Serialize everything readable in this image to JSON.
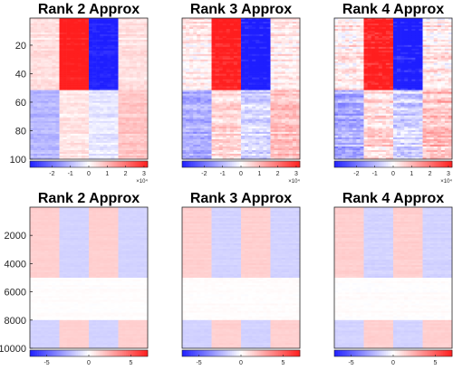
{
  "chart_data": [
    {
      "type": "heatmap",
      "title": "Rank 2 Approx",
      "ylim": [
        1,
        100
      ],
      "yticks": [
        20,
        40,
        60,
        80,
        100
      ],
      "colorbar": {
        "ticks": [
          -2,
          -1,
          0,
          1,
          2,
          3
        ],
        "min": -3.2,
        "max": 3.2,
        "multiplier": "×10⁴"
      },
      "row_groups": [
        {
          "rows": [
            1,
            51
          ],
          "column_values": [
            0.35,
            2.8,
            -2.8,
            0.35
          ]
        },
        {
          "rows": [
            52,
            100
          ],
          "column_values": [
            -0.9,
            0.3,
            -0.3,
            0.7
          ]
        }
      ],
      "noise": 0.18
    },
    {
      "type": "heatmap",
      "title": "Rank 3 Approx",
      "ylim": [
        1,
        100
      ],
      "yticks": [],
      "colorbar": {
        "ticks": [
          -2,
          -1,
          0,
          1,
          2,
          3
        ],
        "min": -3.2,
        "max": 3.2,
        "multiplier": "×10⁴"
      },
      "row_groups": [
        {
          "rows": [
            1,
            51
          ],
          "column_values": [
            0.3,
            2.9,
            -2.9,
            0.3
          ]
        },
        {
          "rows": [
            52,
            100
          ],
          "column_values": [
            -1.0,
            0.5,
            -0.5,
            0.8
          ]
        }
      ],
      "noise": 0.35
    },
    {
      "type": "heatmap",
      "title": "Rank 4 Approx",
      "ylim": [
        1,
        100
      ],
      "yticks": [],
      "colorbar": {
        "ticks": [
          -2,
          -1,
          0,
          1,
          2,
          3
        ],
        "min": -3.2,
        "max": 3.2,
        "multiplier": "×10⁴"
      },
      "row_groups": [
        {
          "rows": [
            1,
            51
          ],
          "column_values": [
            0.3,
            2.9,
            -2.9,
            0.3
          ]
        },
        {
          "rows": [
            52,
            100
          ],
          "column_values": [
            -1.0,
            0.5,
            -0.5,
            0.8
          ]
        }
      ],
      "noise": 0.45
    },
    {
      "type": "heatmap",
      "title": "Rank 2 Approx",
      "ylim": [
        1,
        10000
      ],
      "yticks": [
        2000,
        4000,
        6000,
        8000,
        10000
      ],
      "colorbar": {
        "ticks": [
          -5,
          0,
          5
        ],
        "min": -7,
        "max": 7
      },
      "row_groups": [
        {
          "rows": [
            1,
            5000
          ],
          "column_values": [
            1.3,
            -1.2,
            1.3,
            -1.2
          ]
        },
        {
          "rows": [
            5001,
            8000
          ],
          "column_values": [
            0.05,
            0.05,
            0.05,
            0.05
          ]
        },
        {
          "rows": [
            8001,
            10000
          ],
          "column_values": [
            -1.2,
            1.3,
            -1.2,
            1.3
          ]
        }
      ],
      "noise": 0.08
    },
    {
      "type": "heatmap",
      "title": "Rank 3 Approx",
      "ylim": [
        1,
        10000
      ],
      "yticks": [],
      "colorbar": {
        "ticks": [
          -5,
          0,
          5
        ],
        "min": -7,
        "max": 7
      },
      "row_groups": [
        {
          "rows": [
            1,
            5000
          ],
          "column_values": [
            1.3,
            -1.2,
            1.3,
            -1.2
          ]
        },
        {
          "rows": [
            5001,
            8000
          ],
          "column_values": [
            0.05,
            0.05,
            0.05,
            0.05
          ]
        },
        {
          "rows": [
            8001,
            10000
          ],
          "column_values": [
            -1.2,
            1.3,
            -1.2,
            1.3
          ]
        }
      ],
      "noise": 0.1
    },
    {
      "type": "heatmap",
      "title": "Rank 4 Approx",
      "ylim": [
        1,
        10000
      ],
      "yticks": [],
      "colorbar": {
        "ticks": [
          -5,
          0,
          5
        ],
        "min": -7,
        "max": 7
      },
      "row_groups": [
        {
          "rows": [
            1,
            5000
          ],
          "column_values": [
            1.3,
            -1.2,
            1.3,
            -1.2
          ]
        },
        {
          "rows": [
            5001,
            8000
          ],
          "column_values": [
            0.05,
            0.05,
            0.05,
            0.05
          ]
        },
        {
          "rows": [
            8001,
            10000
          ],
          "column_values": [
            -1.2,
            1.3,
            -1.2,
            1.3
          ]
        }
      ],
      "noise": 0.12
    }
  ],
  "colormap": {
    "low": "#1e1eff",
    "mid": "#ffffff",
    "high": "#ff1e1e"
  }
}
